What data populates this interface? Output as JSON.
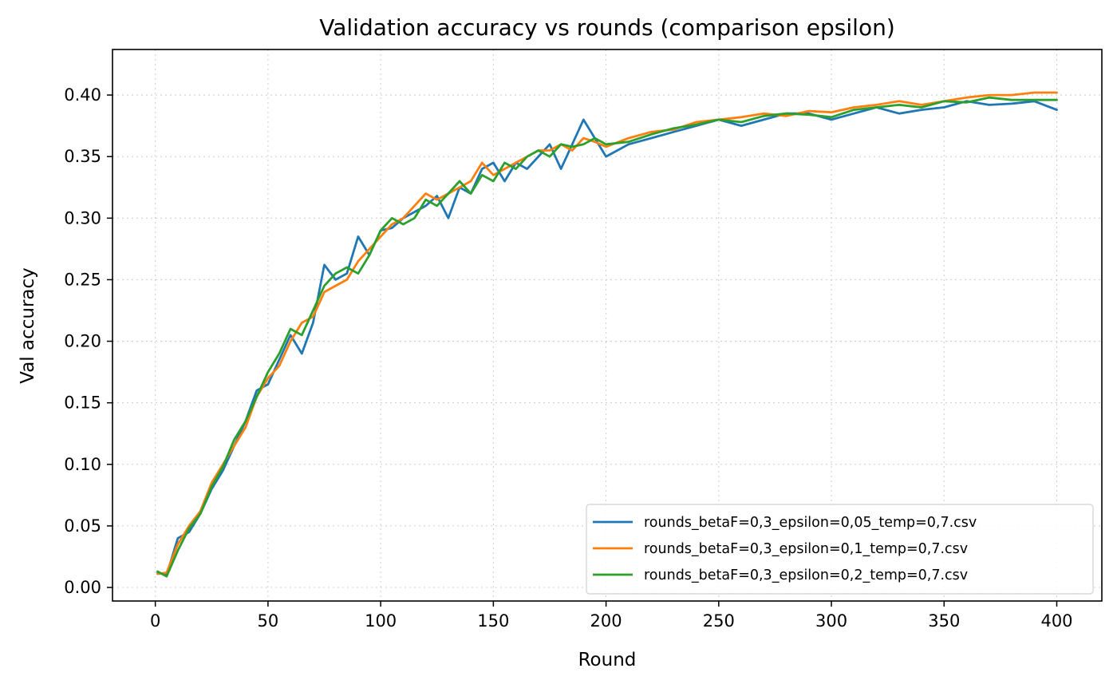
{
  "chart_data": {
    "type": "line",
    "title": "Validation accuracy vs rounds (comparison epsilon)",
    "xlabel": "Round",
    "ylabel": "Val accuracy",
    "xlim": [
      -19,
      420
    ],
    "ylim": [
      -0.011,
      0.437
    ],
    "xticks": [
      0,
      50,
      100,
      150,
      200,
      250,
      300,
      350,
      400
    ],
    "yticks": [
      0.0,
      0.05,
      0.1,
      0.15,
      0.2,
      0.25,
      0.3,
      0.35,
      0.4
    ],
    "xtick_labels": [
      "0",
      "50",
      "100",
      "150",
      "200",
      "250",
      "300",
      "350",
      "400"
    ],
    "ytick_labels": [
      "0.00",
      "0.05",
      "0.10",
      "0.15",
      "0.20",
      "0.25",
      "0.30",
      "0.35",
      "0.40"
    ],
    "grid": true,
    "legend_position": "bottom-right",
    "x": [
      1,
      5,
      10,
      15,
      20,
      25,
      30,
      35,
      40,
      45,
      50,
      55,
      60,
      65,
      70,
      75,
      80,
      85,
      90,
      95,
      100,
      105,
      110,
      115,
      120,
      125,
      130,
      135,
      140,
      145,
      150,
      155,
      160,
      165,
      170,
      175,
      180,
      185,
      190,
      195,
      200,
      210,
      220,
      230,
      240,
      250,
      260,
      270,
      280,
      290,
      300,
      310,
      320,
      330,
      340,
      350,
      360,
      370,
      380,
      390,
      400
    ],
    "series": [
      {
        "name": "rounds_betaF=0,3_epsilon=0,05_temp=0,7.csv",
        "color": "#1f77b4",
        "values": [
          0.012,
          0.01,
          0.04,
          0.045,
          0.06,
          0.08,
          0.095,
          0.115,
          0.135,
          0.16,
          0.165,
          0.185,
          0.205,
          0.19,
          0.215,
          0.262,
          0.25,
          0.255,
          0.285,
          0.27,
          0.29,
          0.292,
          0.3,
          0.305,
          0.31,
          0.318,
          0.3,
          0.325,
          0.32,
          0.34,
          0.345,
          0.33,
          0.345,
          0.34,
          0.35,
          0.36,
          0.34,
          0.36,
          0.38,
          0.365,
          0.35,
          0.36,
          0.365,
          0.37,
          0.375,
          0.38,
          0.375,
          0.38,
          0.385,
          0.385,
          0.38,
          0.385,
          0.39,
          0.385,
          0.388,
          0.39,
          0.395,
          0.392,
          0.393,
          0.395,
          0.388
        ]
      },
      {
        "name": "rounds_betaF=0,3_epsilon=0,1_temp=0,7.csv",
        "color": "#ff7f0e",
        "values": [
          0.011,
          0.012,
          0.035,
          0.05,
          0.062,
          0.085,
          0.1,
          0.115,
          0.13,
          0.155,
          0.17,
          0.18,
          0.2,
          0.215,
          0.22,
          0.24,
          0.245,
          0.25,
          0.265,
          0.275,
          0.285,
          0.295,
          0.3,
          0.31,
          0.32,
          0.315,
          0.32,
          0.325,
          0.33,
          0.345,
          0.335,
          0.34,
          0.345,
          0.35,
          0.355,
          0.355,
          0.36,
          0.355,
          0.365,
          0.362,
          0.358,
          0.365,
          0.37,
          0.372,
          0.378,
          0.38,
          0.382,
          0.385,
          0.383,
          0.387,
          0.386,
          0.39,
          0.392,
          0.395,
          0.392,
          0.395,
          0.398,
          0.4,
          0.4,
          0.402,
          0.402
        ]
      },
      {
        "name": "rounds_betaF=0,3_epsilon=0,2_temp=0,7.csv",
        "color": "#2ca02c",
        "values": [
          0.013,
          0.009,
          0.03,
          0.048,
          0.06,
          0.082,
          0.098,
          0.12,
          0.135,
          0.155,
          0.175,
          0.19,
          0.21,
          0.205,
          0.225,
          0.245,
          0.255,
          0.26,
          0.255,
          0.27,
          0.29,
          0.3,
          0.295,
          0.3,
          0.315,
          0.31,
          0.32,
          0.33,
          0.32,
          0.335,
          0.33,
          0.345,
          0.34,
          0.35,
          0.355,
          0.35,
          0.36,
          0.358,
          0.36,
          0.365,
          0.36,
          0.362,
          0.368,
          0.373,
          0.376,
          0.38,
          0.378,
          0.383,
          0.385,
          0.384,
          0.382,
          0.388,
          0.39,
          0.392,
          0.39,
          0.395,
          0.394,
          0.398,
          0.396,
          0.396,
          0.396
        ]
      }
    ]
  }
}
